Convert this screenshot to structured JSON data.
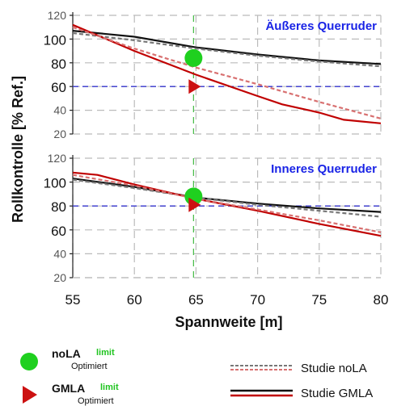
{
  "chart_data": {
    "type": "line",
    "xlabel": "Spannweite [m]",
    "ylabel": "Rollkontrolle [% Ref.]",
    "xlim": [
      55,
      80
    ],
    "xticks": [
      55,
      60,
      65,
      70,
      75,
      80
    ],
    "grid": true,
    "colors": {
      "noLA_marker": "#1fd01f",
      "GMLA_marker": "#cc1111",
      "studie_noLA_black": "#777777",
      "studie_noLA_red": "#d87070",
      "studie_GMLA_black": "#111111",
      "studie_GMLA_red": "#c00000",
      "reference_line": "#3333cc",
      "vertical_line": "#44bb44",
      "title": "#1a24e6"
    },
    "panels": [
      {
        "title": "Äußeres Querruder",
        "ylim": [
          20,
          120
        ],
        "yticks": [
          20,
          40,
          60,
          80,
          100,
          120
        ],
        "reference_y": 60,
        "vertical_x": 64.8,
        "markers": {
          "noLA_limit": {
            "x": 64.8,
            "y": 84
          },
          "GMLA_limit": {
            "x": 64.8,
            "y": 60
          }
        },
        "series": [
          {
            "style": "black-solid",
            "x": [
              55,
              60,
              65,
              70,
              75,
              80
            ],
            "y": [
              107,
              102,
              93,
              87,
              82,
              79
            ]
          },
          {
            "style": "black-dashed",
            "x": [
              55,
              60,
              65,
              70,
              75,
              80
            ],
            "y": [
              105,
              99,
              92,
              86,
              81,
              77
            ]
          },
          {
            "style": "red-solid",
            "x": [
              55,
              60,
              65,
              70,
              72,
              75,
              77,
              80
            ],
            "y": [
              112,
              90,
              70,
              52,
              45,
              38,
              32,
              29
            ]
          },
          {
            "style": "red-dashed",
            "x": [
              55,
              60,
              65,
              70,
              75,
              80
            ],
            "y": [
              110,
              92,
              76,
              62,
              47,
              33
            ]
          }
        ]
      },
      {
        "title": "Inneres Querruder",
        "ylim": [
          20,
          120
        ],
        "yticks": [
          20,
          40,
          60,
          80,
          100,
          120
        ],
        "reference_y": 80,
        "vertical_x": 64.8,
        "markers": {
          "noLA_limit": {
            "x": 64.8,
            "y": 88
          },
          "GMLA_limit": {
            "x": 64.8,
            "y": 81
          }
        },
        "series": [
          {
            "style": "black-solid",
            "x": [
              55,
              60,
              65,
              70,
              75,
              80
            ],
            "y": [
              103,
              96,
              87,
              82,
              78,
              75
            ]
          },
          {
            "style": "black-dashed",
            "x": [
              55,
              60,
              65,
              70,
              75,
              80
            ],
            "y": [
              102,
              95,
              87,
              81,
              76,
              71
            ]
          },
          {
            "style": "red-solid",
            "x": [
              55,
              57,
              60,
              65,
              70,
              75,
              80
            ],
            "y": [
              108,
              106,
              98,
              86,
              76,
              65,
              55
            ]
          },
          {
            "style": "red-dashed",
            "x": [
              55,
              60,
              65,
              70,
              75,
              80
            ],
            "y": [
              106,
              97,
              86,
              77,
              68,
              58
            ]
          }
        ]
      }
    ],
    "legend": [
      {
        "marker": "circle",
        "label": "noLA",
        "sup": "limit",
        "sub": "Optimiert"
      },
      {
        "marker": "triangle",
        "label": "GMLA",
        "sup": "limit",
        "sub": "Optimiert"
      },
      {
        "line": "dashed",
        "label": "Studie noLA"
      },
      {
        "line": "solid",
        "label": "Studie GMLA"
      }
    ]
  }
}
